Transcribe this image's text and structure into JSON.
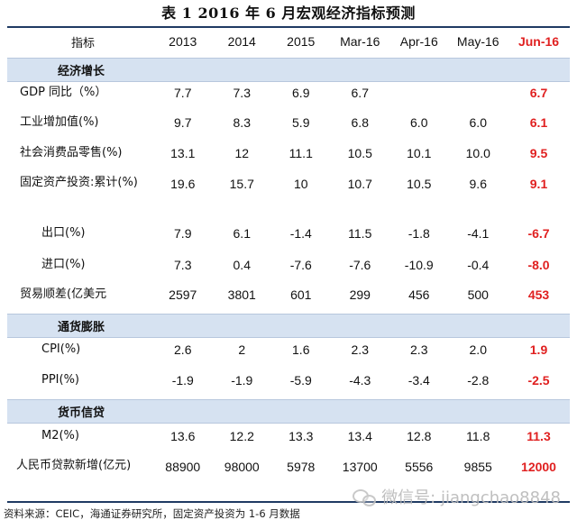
{
  "title": "表 1  2016 年 6 月宏观经济指标预测",
  "header": {
    "label": "指标",
    "columns": [
      "2013",
      "2014",
      "2015",
      "Mar-16",
      "Apr-16",
      "May-16",
      "Jun-16"
    ]
  },
  "sections": [
    {
      "name": "经济增长",
      "rows": [
        {
          "label": "GDP 同比（%）",
          "values": [
            "7.7",
            "7.3",
            "6.9",
            "6.7",
            "",
            "",
            "6.7"
          ]
        },
        {
          "label": "工业增加值(%)",
          "values": [
            "9.7",
            "8.3",
            "5.9",
            "6.8",
            "6.0",
            "6.0",
            "6.1"
          ]
        },
        {
          "label": "社会消费品零售(%)",
          "values": [
            "13.1",
            "12",
            "11.1",
            "10.5",
            "10.1",
            "10.0",
            "9.5"
          ]
        },
        {
          "label": "固定资产投资:累计(%)",
          "values": [
            "19.6",
            "15.7",
            "10",
            "10.7",
            "10.5",
            "9.6",
            "9.1"
          ]
        },
        {
          "label": "出口(%)",
          "values": [
            "7.9",
            "6.1",
            "-1.4",
            "11.5",
            "-1.8",
            "-4.1",
            "-6.7"
          ]
        },
        {
          "label": "进口(%)",
          "values": [
            "7.3",
            "0.4",
            "-7.6",
            "-7.6",
            "-10.9",
            "-0.4",
            "-8.0"
          ]
        },
        {
          "label": "贸易顺差(亿美元",
          "values": [
            "2597",
            "3801",
            "601",
            "299",
            "456",
            "500",
            "453"
          ]
        }
      ]
    },
    {
      "name": "通货膨胀",
      "rows": [
        {
          "label": "CPI(%)",
          "values": [
            "2.6",
            "2",
            "1.6",
            "2.3",
            "2.3",
            "2.0",
            "1.9"
          ]
        },
        {
          "label": "PPI(%)",
          "values": [
            "-1.9",
            "-1.9",
            "-5.9",
            "-4.3",
            "-3.4",
            "-2.8",
            "-2.5"
          ]
        }
      ]
    },
    {
      "name": "货币信贷",
      "rows": [
        {
          "label": "M2(%)",
          "values": [
            "13.6",
            "12.2",
            "13.3",
            "13.4",
            "12.8",
            "11.8",
            "11.3"
          ]
        },
        {
          "label": "人民币贷款新增(亿元)",
          "values": [
            "88900",
            "98000",
            "5978",
            "13700",
            "5556",
            "9855",
            "12000"
          ]
        }
      ]
    }
  ],
  "footer": "资料来源：CEIC，海通证券研究所，固定资产投资为 1-6 月数据",
  "watermark": "微信号: jiangchao8848",
  "colors": {
    "accent": "#e02020",
    "section_bg": "#d6e2f1",
    "rule": "#1f3a63"
  }
}
